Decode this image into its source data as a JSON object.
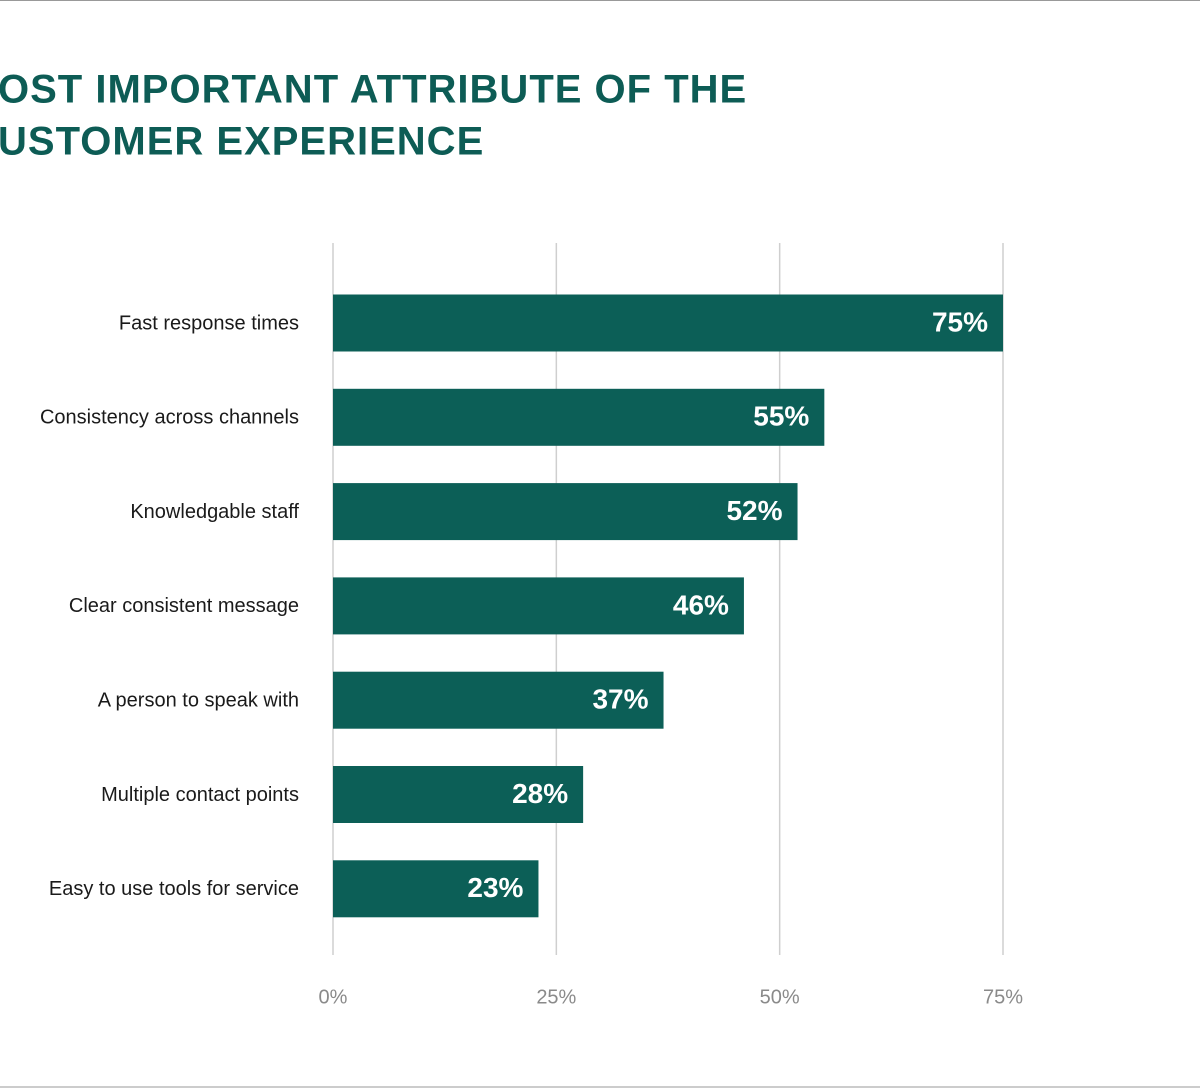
{
  "chart_data": {
    "type": "bar",
    "orientation": "horizontal",
    "title": [
      "OST IMPORTANT ATTRIBUTE OF THE",
      "USTOMER EXPERIENCE"
    ],
    "categories": [
      "Fast response times",
      "Consistency across channels",
      "Knowledgable staff",
      "Clear consistent message",
      "A person to speak with",
      "Multiple contact points",
      "Easy to use tools for service"
    ],
    "values": [
      75,
      55,
      52,
      46,
      37,
      28,
      23
    ],
    "value_labels": [
      "75%",
      "55%",
      "52%",
      "46%",
      "37%",
      "28%",
      "23%"
    ],
    "color": "#0c5f57",
    "xlim": [
      0,
      100
    ],
    "xticks": [
      {
        "value": 0,
        "label": "0%"
      },
      {
        "value": 25,
        "label": "25%"
      },
      {
        "value": 50,
        "label": "50%"
      },
      {
        "value": 75,
        "label": "75%"
      }
    ],
    "grid": true
  }
}
